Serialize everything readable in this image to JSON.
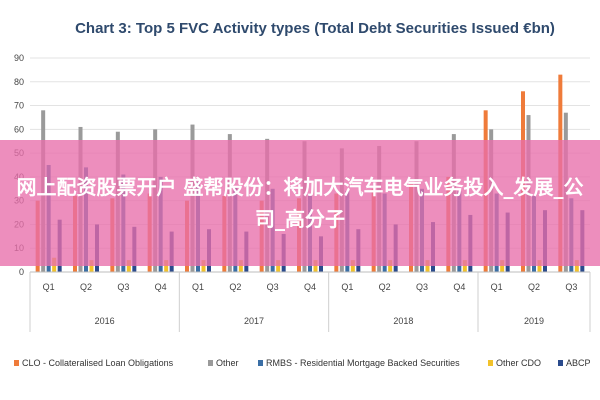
{
  "overlay": {
    "text": "网上配资股票开户 盛帮股份：将加大汽车电气业务投入_发展_公司_高分子"
  },
  "chart_data": {
    "type": "bar",
    "title": "Chart 3: Top 5 FVC Activity types (Total Debt Securities Issued €bn)",
    "categories": [
      "Q1",
      "Q2",
      "Q3",
      "Q4",
      "Q1",
      "Q2",
      "Q3",
      "Q4",
      "Q1",
      "Q2",
      "Q3",
      "Q4",
      "Q1",
      "Q2",
      "Q3"
    ],
    "groups": [
      {
        "label": "2016",
        "quarters": 4
      },
      {
        "label": "2017",
        "quarters": 4
      },
      {
        "label": "2018",
        "quarters": 4
      },
      {
        "label": "2019",
        "quarters": 3
      }
    ],
    "ylim": [
      0,
      90
    ],
    "yticks": [
      0,
      10,
      20,
      30,
      40,
      50,
      60,
      70,
      80,
      90
    ],
    "grid": true,
    "legend_position": "bottom",
    "series": [
      {
        "name": "CLO - Collateralised Loan Obligations",
        "color": "#ef7b3a",
        "values": [
          30,
          32,
          31,
          33,
          30,
          32,
          30,
          31,
          33,
          35,
          37,
          40,
          68,
          76,
          83
        ]
      },
      {
        "name": "Other",
        "color": "#9a9a9a",
        "values": [
          68,
          61,
          59,
          60,
          62,
          58,
          56,
          55,
          52,
          53,
          55,
          58,
          60,
          66,
          67
        ]
      },
      {
        "name": "RMBS - Residential Mortgage Backed Securities",
        "color": "#3a6ea5",
        "values": [
          45,
          44,
          41,
          40,
          38,
          36,
          35,
          33,
          34,
          33,
          35,
          34,
          33,
          32,
          31
        ]
      },
      {
        "name": "Other CDO",
        "color": "#f2c22b",
        "values": [
          6,
          5,
          5,
          5,
          5,
          5,
          5,
          5,
          5,
          5,
          5,
          5,
          5,
          5,
          5
        ]
      },
      {
        "name": "ABCP",
        "color": "#2a4a8c",
        "values": [
          22,
          20,
          19,
          17,
          18,
          17,
          16,
          15,
          18,
          20,
          21,
          24,
          25,
          26,
          26
        ]
      }
    ]
  }
}
